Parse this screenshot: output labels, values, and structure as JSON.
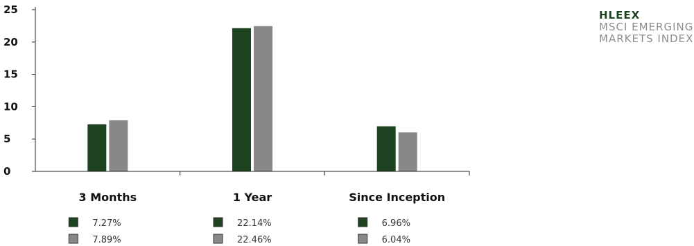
{
  "chart_data": {
    "type": "bar",
    "categories": [
      "3 Months",
      "1 Year",
      "Since Inception"
    ],
    "series": [
      {
        "name": "HLEEX",
        "values": [
          7.27,
          22.14,
          6.96
        ],
        "labels": [
          "7.27%",
          "22.14%",
          "6.96%"
        ],
        "color": "#1e4320"
      },
      {
        "name": "MSCI EMERGING MARKETS INDEX",
        "values": [
          7.89,
          22.46,
          6.04
        ],
        "labels": [
          "7.89%",
          "22.46%",
          "6.04%"
        ],
        "color": "#888888"
      }
    ],
    "yticks": [
      "0",
      "5",
      "10",
      "15",
      "20",
      "25"
    ],
    "ylim": [
      0,
      25
    ],
    "grid": false,
    "legend_position": "top-right"
  },
  "legend": {
    "line1": "HLEEX",
    "line2": "MSCI EMERGING",
    "line3": "MARKETS INDEX"
  }
}
